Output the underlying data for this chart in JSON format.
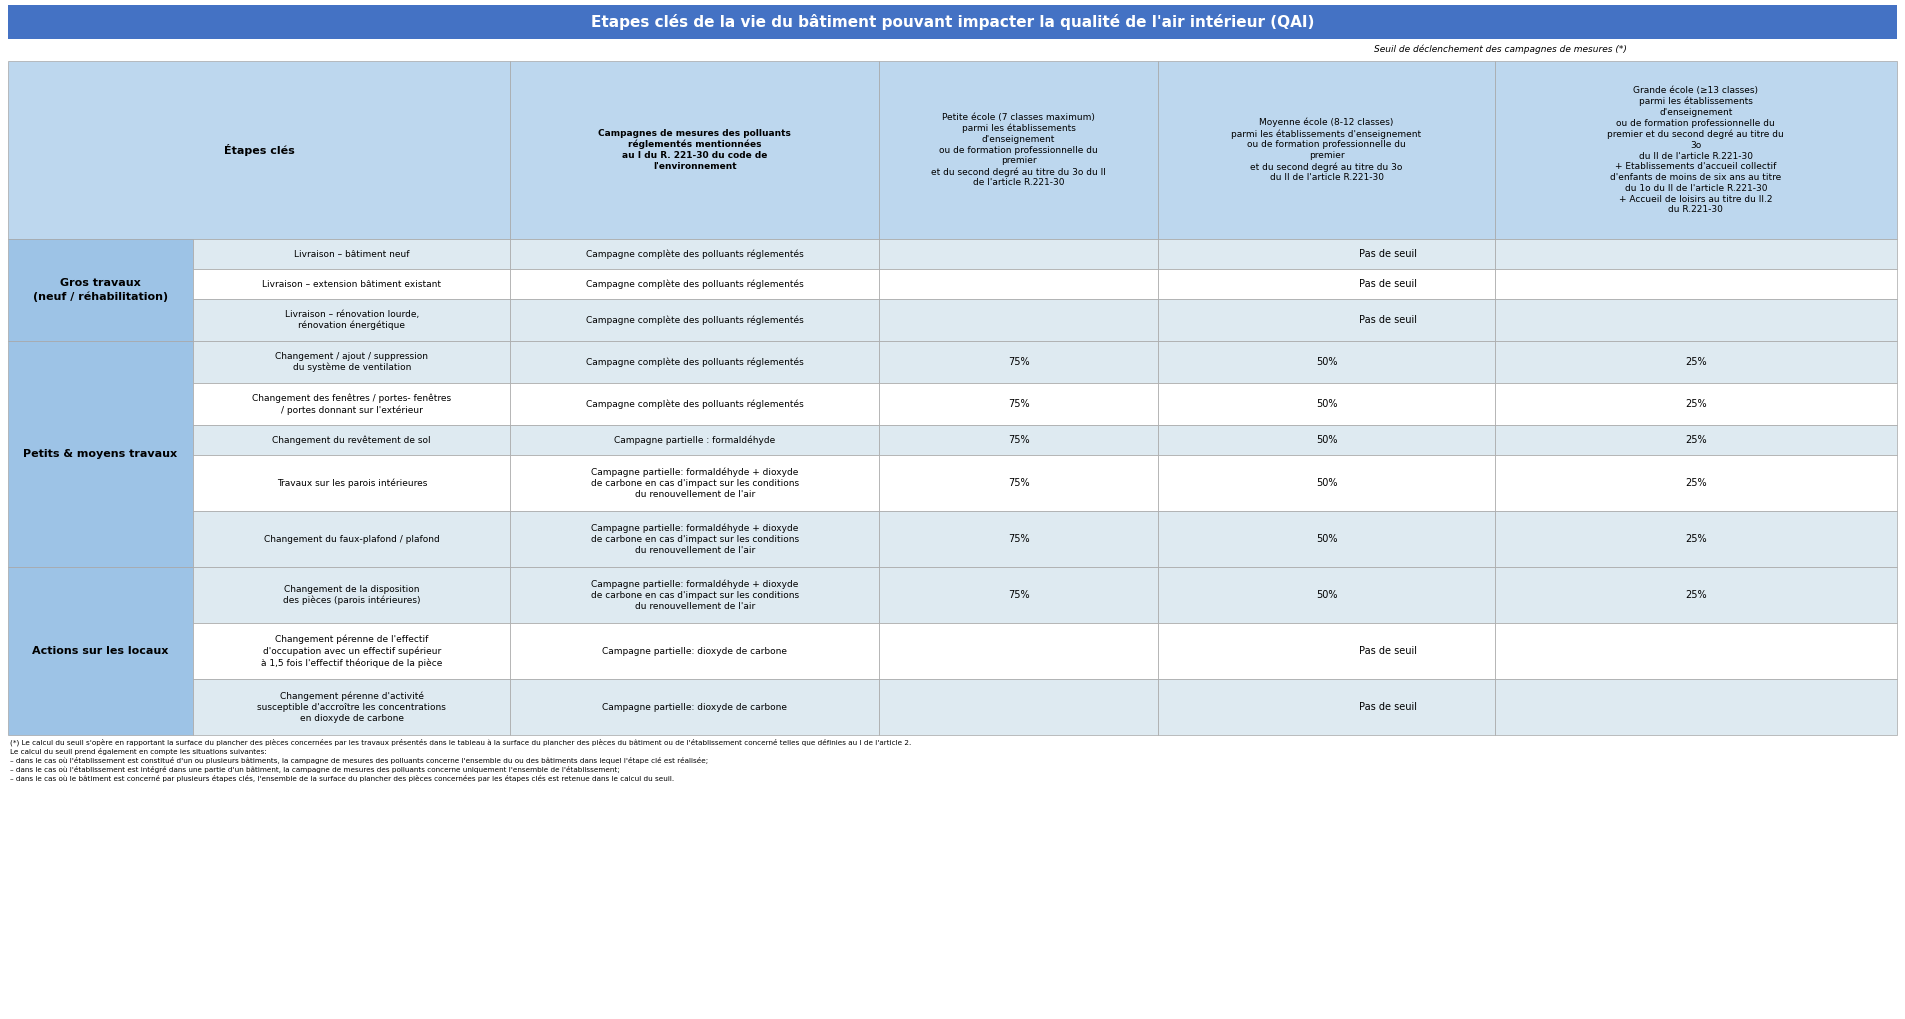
{
  "title": "Etapes clés de la vie du bâtiment pouvant impacter la qualité de l'air intérieur (QAI)",
  "title_bg": "#4472C4",
  "title_color": "white",
  "seuil_label": "Seuil de déclenchement des campagnes de mesures (*)",
  "header_bg": "#BDD7EE",
  "row_bg_light": "#DEEAF1",
  "row_bg_white": "#FFFFFF",
  "group_bg": "#9DC3E6",
  "border_color": "#A6A6A6",
  "col_headers": [
    "Étapes clés",
    "Campagnes de mesures des polluants\nréglementés mentionnées\nau I du R. 221-30 du code de\nl'environnement",
    "Petite école (7 classes maximum)\nparmi les établissements\nd'enseignement\nou de formation professionnelle du\npremier\net du second degré au titre du 3o du II\nde l'article R.221-30",
    "Moyenne école (8-12 classes)\nparmi les établissements d'enseignement\nou de formation professionnelle du\npremier\net du second degré au titre du 3o\ndu II de l'article R.221-30",
    "Grande école (≥13 classes)\nparmi les établissements\nd'enseignement\nou de formation professionnelle du\npremier et du second degré au titre du\n3o\ndu II de l'article R.221-30\n+ Etablissements d'accueil collectif\nd'enfants de moins de six ans au titre\ndu 1o du II de l'article R.221-30\n+ Accueil de loisirs au titre du II.2\ndu R.221-30"
  ],
  "groups": [
    {
      "name": "Gros travaux\n(neuf / réhabilitation)",
      "rows": [
        [
          "Livraison – bâtiment neuf",
          "Campagne complète des polluants réglementés",
          "",
          "Pas de seuil",
          ""
        ],
        [
          "Livraison – extension bâtiment existant",
          "Campagne complète des polluants réglementés",
          "",
          "Pas de seuil",
          ""
        ],
        [
          "Livraison – rénovation lourde,\nrénovation énergétique",
          "Campagne complète des polluants réglementés",
          "",
          "Pas de seuil",
          ""
        ]
      ]
    },
    {
      "name": "Petits & moyens travaux",
      "rows": [
        [
          "Changement / ajout / suppression\ndu système de ventilation",
          "Campagne complète des polluants réglementés",
          "75%",
          "50%",
          "25%"
        ],
        [
          "Changement des fenêtres / portes- fenêtres\n/ portes donnant sur l'extérieur",
          "Campagne complète des polluants réglementés",
          "75%",
          "50%",
          "25%"
        ],
        [
          "Changement du revêtement de sol",
          "Campagne partielle : formaldéhyde",
          "75%",
          "50%",
          "25%"
        ],
        [
          "Travaux sur les parois intérieures",
          "Campagne partielle: formaldéhyde + dioxyde\nde carbone en cas d'impact sur les conditions\ndu renouvellement de l'air",
          "75%",
          "50%",
          "25%"
        ],
        [
          "Changement du faux-plafond / plafond",
          "Campagne partielle: formaldéhyde + dioxyde\nde carbone en cas d'impact sur les conditions\ndu renouvellement de l'air",
          "75%",
          "50%",
          "25%"
        ]
      ]
    },
    {
      "name": "Actions sur les locaux",
      "rows": [
        [
          "Changement de la disposition\ndes pièces (parois intérieures)",
          "Campagne partielle: formaldéhyde + dioxyde\nde carbone en cas d'impact sur les conditions\ndu renouvellement de l'air",
          "75%",
          "50%",
          "25%"
        ],
        [
          "Changement pérenne de l'effectif\nd'occupation avec un effectif supérieur\nà 1,5 fois l'effectif théorique de la pièce",
          "Campagne partielle: dioxyde de carbone",
          "",
          "Pas de seuil",
          ""
        ],
        [
          "Changement pérenne d'activité\nsusceptible d'accroître les concentrations\nen dioxyde de carbone",
          "Campagne partielle: dioxyde de carbone",
          "",
          "Pas de seuil",
          ""
        ]
      ]
    }
  ],
  "footnote_lines": [
    "(*) Le calcul du seuil s'opère en rapportant la surface du plancher des pièces concernées par les travaux présentés dans le tableau à la surface du plancher des pièces du bâtiment ou de l'établissement concerné telles que définies au I de l'article 2.",
    "Le calcul du seuil prend également en compte les situations suivantes:",
    "– dans le cas où l'établissement est constitué d'un ou plusieurs bâtiments, la campagne de mesures des polluants concerne l'ensemble du ou des bâtiments dans lequel l'étape clé est réalisée;",
    "– dans le cas où l'établissement est intégré dans une partie d'un bâtiment, la campagne de mesures des polluants concerne uniquement l'ensemble de l'établissement;",
    "– dans le cas où le bâtiment est concerné par plusieurs étapes clés, l'ensemble de la surface du plancher des pièces concernées par les étapes clés est retenue dans le calcul du seuil."
  ]
}
